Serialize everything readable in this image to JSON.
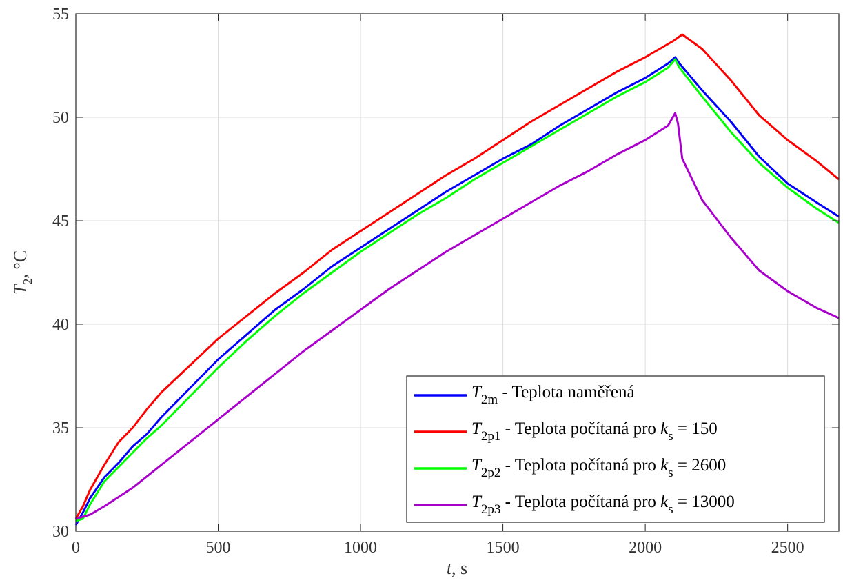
{
  "chart_data": {
    "type": "line",
    "xlabel": {
      "symbol": "t",
      "unit": ", s"
    },
    "ylabel": {
      "symbol": "T",
      "sub": "2",
      "unit": ", °C"
    },
    "xlim": [
      0,
      2680
    ],
    "ylim": [
      30,
      55
    ],
    "xticks": [
      0,
      500,
      1000,
      1500,
      2000,
      2500
    ],
    "yticks": [
      30,
      35,
      40,
      45,
      50,
      55
    ],
    "grid": true,
    "legend_position": "bottom-right",
    "series": [
      {
        "key": "t2m",
        "symbol": "T",
        "sub": "2m",
        "text": " - Teplota naměřená",
        "color": "#0000ff",
        "points": [
          [
            0,
            30.3
          ],
          [
            25,
            30.9
          ],
          [
            50,
            31.6
          ],
          [
            100,
            32.6
          ],
          [
            150,
            33.3
          ],
          [
            200,
            34.1
          ],
          [
            250,
            34.7
          ],
          [
            300,
            35.5
          ],
          [
            400,
            36.9
          ],
          [
            500,
            38.3
          ],
          [
            600,
            39.5
          ],
          [
            700,
            40.7
          ],
          [
            800,
            41.7
          ],
          [
            900,
            42.8
          ],
          [
            1000,
            43.7
          ],
          [
            1100,
            44.6
          ],
          [
            1200,
            45.5
          ],
          [
            1300,
            46.4
          ],
          [
            1400,
            47.2
          ],
          [
            1500,
            48.0
          ],
          [
            1600,
            48.7
          ],
          [
            1700,
            49.6
          ],
          [
            1800,
            50.4
          ],
          [
            1900,
            51.2
          ],
          [
            2000,
            51.9
          ],
          [
            2080,
            52.6
          ],
          [
            2105,
            52.9
          ],
          [
            2120,
            52.6
          ],
          [
            2200,
            51.3
          ],
          [
            2300,
            49.8
          ],
          [
            2400,
            48.1
          ],
          [
            2500,
            46.8
          ],
          [
            2600,
            45.9
          ],
          [
            2680,
            45.2
          ]
        ]
      },
      {
        "key": "t2p1",
        "symbol": "T",
        "sub": "2p1",
        "text": " - Teplota počítaná pro ",
        "k_sub": "s",
        "k_value": " = 150",
        "color": "#ff0000",
        "points": [
          [
            0,
            30.6
          ],
          [
            25,
            31.2
          ],
          [
            50,
            32.0
          ],
          [
            100,
            33.2
          ],
          [
            150,
            34.3
          ],
          [
            200,
            35.0
          ],
          [
            250,
            35.9
          ],
          [
            300,
            36.7
          ],
          [
            400,
            38.0
          ],
          [
            500,
            39.3
          ],
          [
            600,
            40.4
          ],
          [
            700,
            41.5
          ],
          [
            800,
            42.5
          ],
          [
            900,
            43.6
          ],
          [
            1000,
            44.5
          ],
          [
            1100,
            45.4
          ],
          [
            1200,
            46.3
          ],
          [
            1300,
            47.2
          ],
          [
            1400,
            48.0
          ],
          [
            1500,
            48.9
          ],
          [
            1600,
            49.8
          ],
          [
            1700,
            50.6
          ],
          [
            1800,
            51.4
          ],
          [
            1900,
            52.2
          ],
          [
            2000,
            52.9
          ],
          [
            2100,
            53.7
          ],
          [
            2130,
            54.0
          ],
          [
            2200,
            53.3
          ],
          [
            2300,
            51.8
          ],
          [
            2400,
            50.1
          ],
          [
            2500,
            48.9
          ],
          [
            2600,
            47.9
          ],
          [
            2680,
            47.0
          ]
        ]
      },
      {
        "key": "t2p2",
        "symbol": "T",
        "sub": "2p2",
        "text": " - Teplota počítaná pro ",
        "k_sub": "s",
        "k_value": " = 2600",
        "color": "#00ff00",
        "points": [
          [
            0,
            30.5
          ],
          [
            25,
            30.6
          ],
          [
            50,
            31.3
          ],
          [
            100,
            32.4
          ],
          [
            150,
            33.1
          ],
          [
            200,
            33.8
          ],
          [
            250,
            34.5
          ],
          [
            300,
            35.1
          ],
          [
            400,
            36.5
          ],
          [
            500,
            37.9
          ],
          [
            600,
            39.2
          ],
          [
            700,
            40.4
          ],
          [
            800,
            41.5
          ],
          [
            900,
            42.5
          ],
          [
            1000,
            43.5
          ],
          [
            1100,
            44.4
          ],
          [
            1200,
            45.3
          ],
          [
            1300,
            46.1
          ],
          [
            1400,
            47.0
          ],
          [
            1500,
            47.8
          ],
          [
            1600,
            48.6
          ],
          [
            1700,
            49.4
          ],
          [
            1800,
            50.2
          ],
          [
            1900,
            51.0
          ],
          [
            2000,
            51.7
          ],
          [
            2080,
            52.4
          ],
          [
            2105,
            52.8
          ],
          [
            2120,
            52.4
          ],
          [
            2200,
            51.0
          ],
          [
            2300,
            49.3
          ],
          [
            2400,
            47.8
          ],
          [
            2500,
            46.6
          ],
          [
            2600,
            45.6
          ],
          [
            2680,
            44.9
          ]
        ]
      },
      {
        "key": "t2p3",
        "symbol": "T",
        "sub": "2p3",
        "text": " - Teplota počítaná pro ",
        "k_sub": "s",
        "k_value": " = 13000",
        "color": "#aa00cc",
        "points": [
          [
            0,
            30.6
          ],
          [
            50,
            30.8
          ],
          [
            100,
            31.2
          ],
          [
            200,
            32.1
          ],
          [
            300,
            33.2
          ],
          [
            400,
            34.3
          ],
          [
            500,
            35.4
          ],
          [
            600,
            36.5
          ],
          [
            700,
            37.6
          ],
          [
            800,
            38.7
          ],
          [
            900,
            39.7
          ],
          [
            1000,
            40.7
          ],
          [
            1100,
            41.7
          ],
          [
            1200,
            42.6
          ],
          [
            1300,
            43.5
          ],
          [
            1400,
            44.3
          ],
          [
            1500,
            45.1
          ],
          [
            1600,
            45.9
          ],
          [
            1700,
            46.7
          ],
          [
            1800,
            47.4
          ],
          [
            1900,
            48.2
          ],
          [
            2000,
            48.9
          ],
          [
            2080,
            49.6
          ],
          [
            2105,
            50.2
          ],
          [
            2115,
            49.7
          ],
          [
            2130,
            48.0
          ],
          [
            2200,
            46.0
          ],
          [
            2300,
            44.2
          ],
          [
            2400,
            42.6
          ],
          [
            2500,
            41.6
          ],
          [
            2600,
            40.8
          ],
          [
            2680,
            40.3
          ]
        ]
      }
    ]
  }
}
